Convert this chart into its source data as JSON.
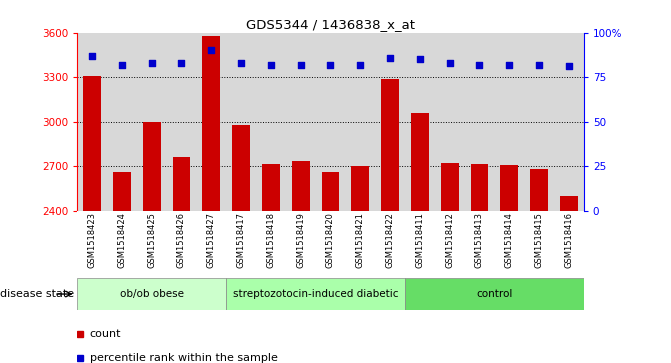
{
  "title": "GDS5344 / 1436838_x_at",
  "samples": [
    "GSM1518423",
    "GSM1518424",
    "GSM1518425",
    "GSM1518426",
    "GSM1518427",
    "GSM1518417",
    "GSM1518418",
    "GSM1518419",
    "GSM1518420",
    "GSM1518421",
    "GSM1518422",
    "GSM1518411",
    "GSM1518412",
    "GSM1518413",
    "GSM1518414",
    "GSM1518415",
    "GSM1518416"
  ],
  "counts": [
    3310,
    2660,
    3000,
    2760,
    3580,
    2975,
    2715,
    2735,
    2660,
    2700,
    3290,
    3060,
    2720,
    2715,
    2710,
    2680,
    2500
  ],
  "percentile_ranks": [
    87,
    82,
    83,
    83,
    90,
    83,
    82,
    82,
    82,
    82,
    86,
    85,
    83,
    82,
    82,
    82,
    81
  ],
  "groups": [
    {
      "label": "ob/ob obese",
      "start": 0,
      "end": 5
    },
    {
      "label": "streptozotocin-induced diabetic",
      "start": 5,
      "end": 11
    },
    {
      "label": "control",
      "start": 11,
      "end": 17
    }
  ],
  "group_colors": [
    "#ccffcc",
    "#aaffaa",
    "#66dd66"
  ],
  "bar_color": "#cc0000",
  "dot_color": "#0000cc",
  "ylim_left": [
    2400,
    3600
  ],
  "ylim_right": [
    0,
    100
  ],
  "yticks_left": [
    2400,
    2700,
    3000,
    3300,
    3600
  ],
  "yticks_right": [
    0,
    25,
    50,
    75,
    100
  ],
  "ytick_right_labels": [
    "0",
    "25",
    "50",
    "75",
    "100%"
  ],
  "grid_values": [
    2700,
    3000,
    3300
  ],
  "disease_state_label": "disease state",
  "legend_count": "count",
  "legend_percentile": "percentile rank within the sample",
  "bar_width": 0.6,
  "plot_bg": "#d8d8d8",
  "xticklabels_bg": "#cccccc"
}
